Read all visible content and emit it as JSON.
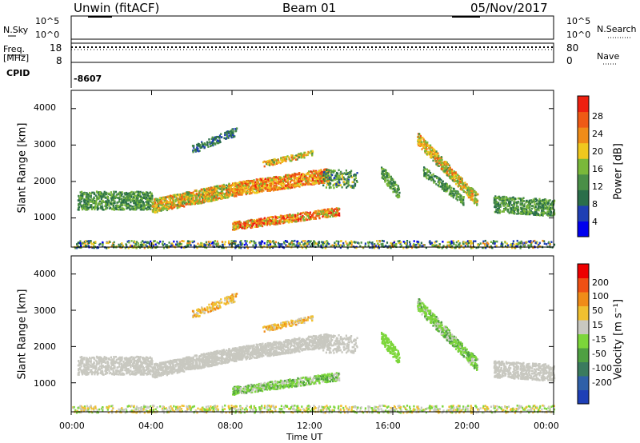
{
  "header": {
    "station": "Unwin (fitACF)",
    "beam": "Beam 01",
    "date": "05/Nov/2017"
  },
  "strip": {
    "nsky_label": "N.Sky",
    "nsky_top": "10^5",
    "nsky_bottom": "10^0",
    "nsearch_label": "N.Search",
    "nsearch_top": "10^5",
    "nsearch_bottom": "10^0",
    "freq_label_1": "Freq.",
    "freq_label_2": "[MHz]",
    "freq_top": "18",
    "freq_bottom": "8",
    "nave_label": "Nave",
    "nave_top": "80",
    "nave_bottom": "0",
    "cpid_label": "CPID",
    "cpid_value": "-8607"
  },
  "chart_data": [
    {
      "type": "heatmap",
      "ylabel": "Slant Range [km]",
      "ylim": [
        200,
        4500
      ],
      "y_ticks": [
        "1000",
        "2000",
        "3000",
        "4000"
      ],
      "colorbar_label": "Power [dB]",
      "colorbar_ticks": [
        "28",
        "24",
        "20",
        "16",
        "12",
        "8",
        "4"
      ],
      "colorbar_colors": [
        "#0000ee",
        "#1f3fb4",
        "#2a6e4a",
        "#4a8f47",
        "#7ab83a",
        "#f0c81e",
        "#f08c18",
        "#ef5a15",
        "#ee2010"
      ]
    },
    {
      "type": "heatmap",
      "ylabel": "Slant Range [km]",
      "ylim": [
        200,
        4500
      ],
      "y_ticks": [
        "1000",
        "2000",
        "3000",
        "4000"
      ],
      "colorbar_label": "Velocity [m s⁻¹]",
      "colorbar_ticks": [
        "200",
        "100",
        "50",
        "15",
        "-15",
        "-50",
        "-100",
        "-200"
      ],
      "colorbar_colors": [
        "#1e3fb6",
        "#2f60a8",
        "#3a7b5e",
        "#4fa042",
        "#7cd63a",
        "#c8c8c0",
        "#f0c030",
        "#f08c18",
        "#ef5014",
        "#ee0000"
      ]
    }
  ],
  "time_axis": {
    "xlabel": "Time UT",
    "ticks": [
      "00:00",
      "04:00",
      "08:00",
      "12:00",
      "16:00",
      "20:00",
      "00:00"
    ]
  }
}
